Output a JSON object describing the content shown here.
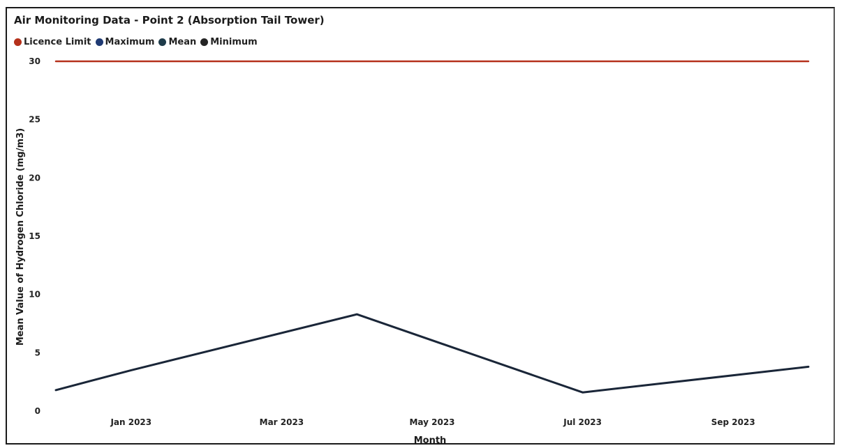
{
  "chart_data": {
    "type": "line",
    "title": "Air Monitoring Data - Point 2 (Absorption Tail Tower)",
    "xlabel": "Month",
    "ylabel": "Mean Value of Hydrogen Chloride (mg/m3)",
    "ylim": [
      0,
      30
    ],
    "yticks": [
      "0",
      "5",
      "10",
      "15",
      "20",
      "25",
      "30"
    ],
    "xticks": [
      "Jan 2023",
      "Mar 2023",
      "May 2023",
      "Jul 2023",
      "Sep 2023"
    ],
    "x": [
      "Dec 2022",
      "Jan 2023",
      "Apr 2023",
      "Jul 2023",
      "Oct 2023"
    ],
    "legend_position": "top-left",
    "grid": false,
    "legend": [
      {
        "name": "Licence Limit",
        "color": "#b5311b"
      },
      {
        "name": "Maximum",
        "color": "#1f3a73"
      },
      {
        "name": "Mean",
        "color": "#1e3b4a"
      },
      {
        "name": "Minimum",
        "color": "#252525"
      }
    ],
    "series": [
      {
        "name": "Licence Limit",
        "color": "#b5311b",
        "values": [
          30,
          30,
          30,
          30,
          30
        ]
      },
      {
        "name": "Mean",
        "color": "#1a2638",
        "values": [
          1.8,
          3.5,
          8.3,
          1.6,
          3.8
        ]
      }
    ]
  }
}
